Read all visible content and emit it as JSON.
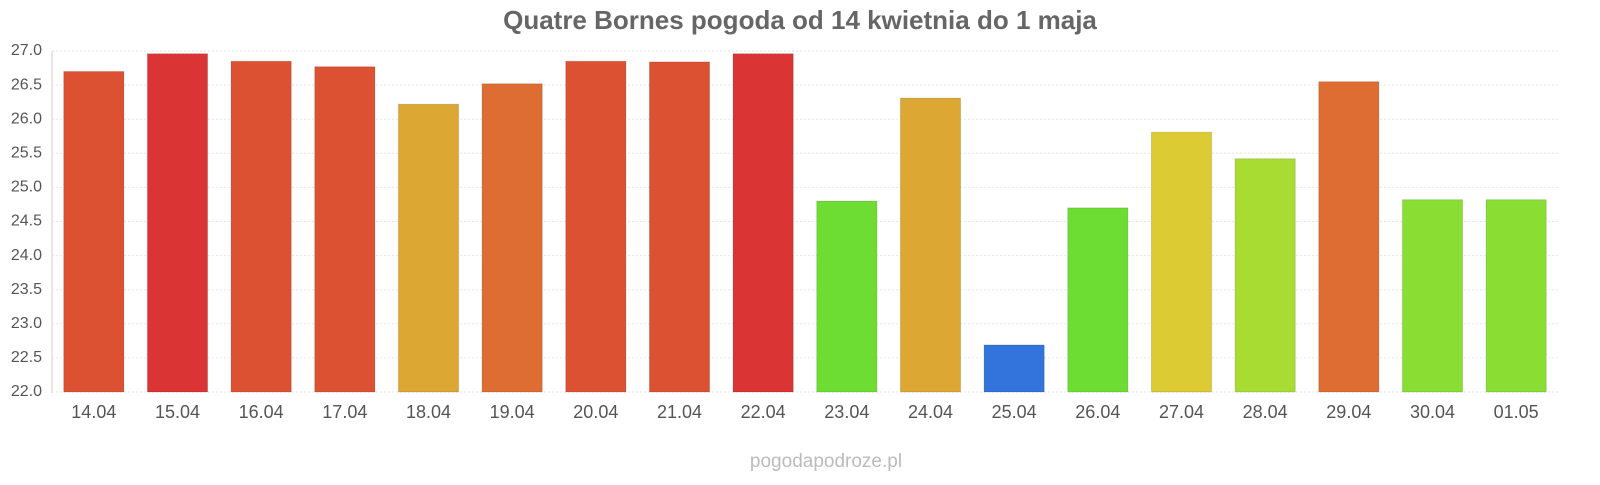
{
  "chart_data": {
    "type": "bar",
    "title": "Quatre Bornes pogoda od 14 kwietnia do 1 maja",
    "categories": [
      "14.04",
      "15.04",
      "16.04",
      "17.04",
      "18.04",
      "19.04",
      "20.04",
      "21.04",
      "22.04",
      "23.04",
      "24.04",
      "25.04",
      "26.04",
      "27.04",
      "28.04",
      "29.04",
      "30.04",
      "01.05"
    ],
    "values": [
      26.7,
      26.96,
      26.85,
      26.77,
      26.22,
      26.52,
      26.85,
      26.84,
      26.96,
      24.8,
      26.31,
      22.69,
      24.7,
      25.81,
      25.42,
      26.55,
      24.82,
      24.82
    ],
    "colors": [
      "#dd5133",
      "#db3434",
      "#dd5133",
      "#dd5133",
      "#dca733",
      "#dd6d33",
      "#dd5133",
      "#dd5133",
      "#db3434",
      "#6edd33",
      "#dca733",
      "#3374dc",
      "#6edd33",
      "#dccb33",
      "#a8dc33",
      "#dd6d33",
      "#8add33",
      "#8add33"
    ],
    "ylim": [
      22,
      27
    ],
    "yticks": [
      {
        "value": 22,
        "label": "22.0"
      },
      22.5,
      {
        "value": 23,
        "label": "23.0"
      },
      23.5,
      {
        "value": 24,
        "label": "24.0"
      },
      24.5,
      {
        "value": 25,
        "label": "25.0"
      },
      25.5,
      {
        "value": 26,
        "label": "26.0"
      },
      26.5,
      {
        "value": 27,
        "label": "27.0"
      }
    ],
    "grid": true,
    "source": "pogodapodroze.pl"
  }
}
